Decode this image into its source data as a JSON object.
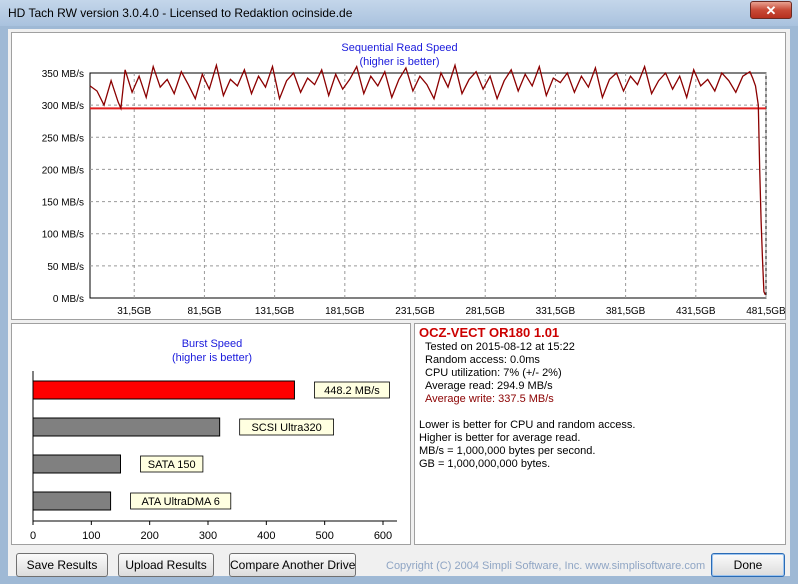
{
  "window": {
    "title": "HD Tach RW version 3.0.4.0 - Licensed to Redaktion ocinside.de",
    "close_glyph": "✕"
  },
  "read_chart": {
    "title": "Sequential Read Speed",
    "subtitle": "(higher is better)"
  },
  "burst_chart": {
    "title": "Burst Speed",
    "subtitle": "(higher is better)"
  },
  "info": {
    "drive": "OCZ-VECT OR180 1.01",
    "tested": "Tested on 2015-08-12 at 15:22",
    "random_access": "Random access: 0.0ms",
    "cpu": "CPU utilization: 7% (+/- 2%)",
    "avg_read": "Average read: 294.9 MB/s",
    "avg_write": "Average write: 337.5 MB/s",
    "note1": "Lower is better for CPU and random access.",
    "note2": "Higher is better for average read.",
    "note3": "MB/s = 1,000,000 bytes per second.",
    "note4": "GB = 1,000,000,000 bytes."
  },
  "buttons": {
    "save": "Save Results",
    "upload": "Upload Results",
    "compare": "Compare Another Drive",
    "done": "Done"
  },
  "copyright": "Copyright (C) 2004 Simpli Software, Inc. www.simplisoftware.com",
  "colors": {
    "read_line": "#8b0000",
    "avg_line": "#e02020",
    "burst_bar": "#ff0000",
    "ref_bar": "#808080",
    "label_bg": "#ffffe1",
    "title_blue": "#1a1adc"
  },
  "chart_data": [
    {
      "type": "line",
      "title": "Sequential Read Speed",
      "subtitle": "(higher is better)",
      "xlabel": "",
      "ylabel": "",
      "ylim": [
        0,
        350
      ],
      "xlim": [
        0,
        481.5
      ],
      "y_ticks": [
        "0 MB/s",
        "50 MB/s",
        "100 MB/s",
        "150 MB/s",
        "200 MB/s",
        "250 MB/s",
        "300 MB/s",
        "350 MB/s"
      ],
      "x_ticks": [
        "31,5GB",
        "81,5GB",
        "131,5GB",
        "181,5GB",
        "231,5GB",
        "281,5GB",
        "331,5GB",
        "381,5GB",
        "431,5GB",
        "481,5GB"
      ],
      "x_tick_values": [
        31.5,
        81.5,
        131.5,
        181.5,
        231.5,
        281.5,
        331.5,
        381.5,
        431.5,
        481.5
      ],
      "grid": true,
      "average_line": 294.9,
      "series": [
        {
          "x": [
            0,
            5,
            10,
            15,
            20,
            22,
            25,
            30,
            35,
            40,
            45,
            50,
            55,
            60,
            65,
            70,
            75,
            80,
            85,
            90,
            95,
            100,
            105,
            110,
            115,
            120,
            125,
            130,
            135,
            140,
            145,
            150,
            155,
            160,
            165,
            170,
            175,
            180,
            185,
            190,
            195,
            200,
            205,
            210,
            215,
            220,
            225,
            230,
            235,
            240,
            245,
            250,
            255,
            260,
            265,
            270,
            275,
            280,
            285,
            290,
            295,
            300,
            305,
            310,
            315,
            320,
            325,
            330,
            335,
            340,
            345,
            350,
            355,
            360,
            365,
            370,
            375,
            380,
            385,
            390,
            395,
            400,
            405,
            410,
            415,
            420,
            425,
            430,
            435,
            440,
            445,
            450,
            455,
            460,
            465,
            470,
            472,
            474,
            476,
            477,
            478,
            479,
            480,
            481
          ],
          "y": [
            330,
            322,
            300,
            338,
            305,
            295,
            355,
            320,
            345,
            312,
            360,
            328,
            340,
            318,
            352,
            332,
            310,
            348,
            325,
            362,
            315,
            340,
            330,
            355,
            318,
            345,
            328,
            360,
            310,
            338,
            350,
            320,
            342,
            332,
            355,
            315,
            348,
            325,
            340,
            360,
            318,
            345,
            330,
            352,
            312,
            340,
            358,
            322,
            345,
            332,
            310,
            350,
            328,
            362,
            318,
            340,
            352,
            325,
            345,
            310,
            338,
            355,
            322,
            348,
            330,
            360,
            315,
            342,
            335,
            350,
            320,
            345,
            328,
            358,
            312,
            340,
            350,
            322,
            345,
            332,
            360,
            318,
            338,
            350,
            325,
            345,
            312,
            355,
            330,
            340,
            322,
            350,
            338,
            320,
            345,
            352,
            342,
            330,
            300,
            200,
            120,
            60,
            10,
            5
          ]
        }
      ]
    },
    {
      "type": "bar",
      "orientation": "horizontal",
      "title": "Burst Speed",
      "subtitle": "(higher is better)",
      "xlabel": "",
      "ylabel": "",
      "xlim": [
        0,
        600
      ],
      "x_ticks": [
        "0",
        "100",
        "200",
        "300",
        "400",
        "500",
        "600"
      ],
      "grid": false,
      "categories": [
        "448.2 MB/s",
        "SCSI Ultra320",
        "SATA 150",
        "ATA UltraDMA 6"
      ],
      "values": [
        448.2,
        320,
        150,
        133
      ]
    }
  ]
}
